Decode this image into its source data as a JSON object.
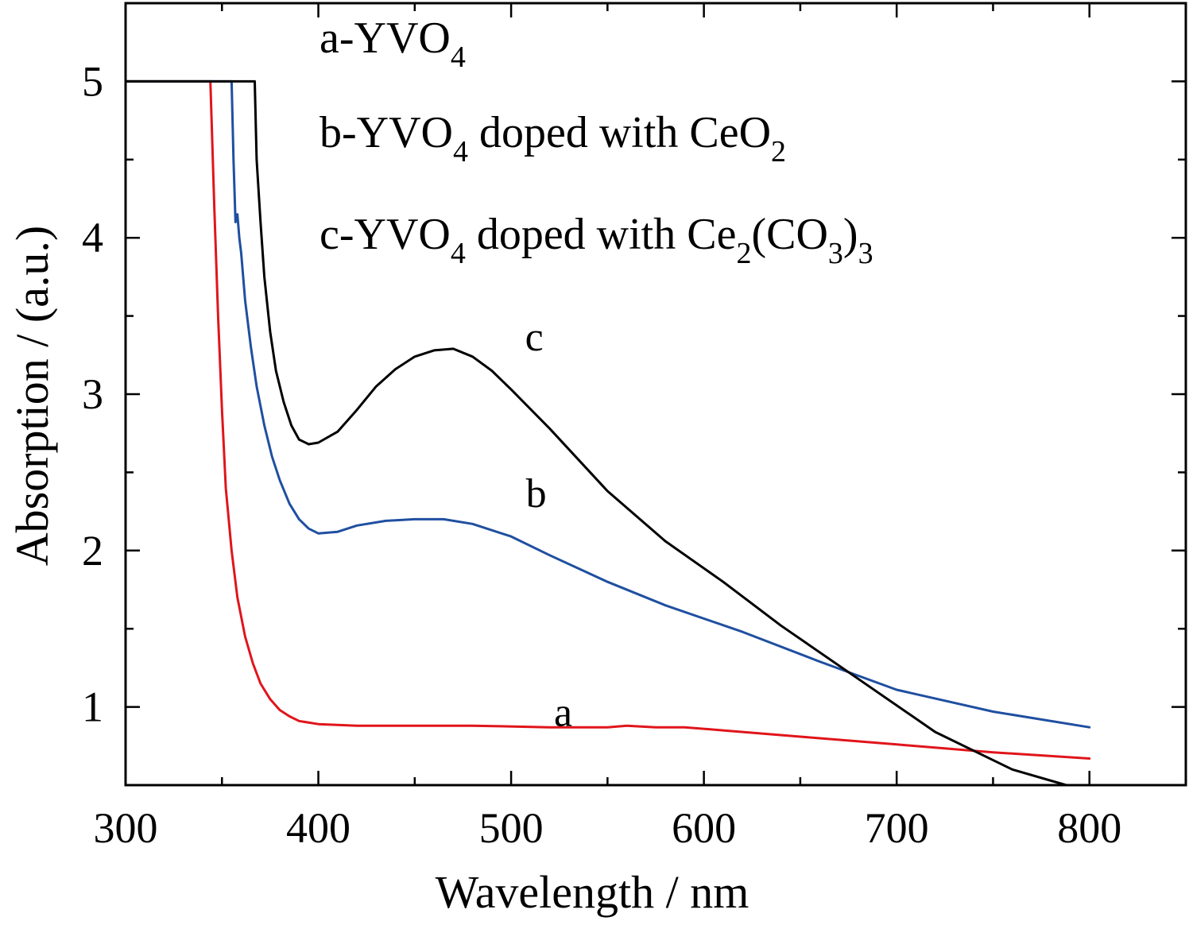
{
  "chart_data": {
    "type": "line",
    "xlabel": "Wavelength / nm",
    "ylabel": "Absorption / (a.u.)",
    "xlim": [
      300,
      850
    ],
    "ylim": [
      0.5,
      5.5
    ],
    "x_ticks": [
      300,
      400,
      500,
      600,
      700,
      800
    ],
    "y_ticks": [
      1,
      2,
      3,
      4,
      5
    ],
    "grid": false,
    "legend_position": "top",
    "legend": [
      {
        "text": "a-YVO",
        "sub": "4",
        "rest": ""
      },
      {
        "text": "b-YVO",
        "sub": "4",
        "rest": " doped with CeO",
        "sub2": "2"
      },
      {
        "text": "c-YVO",
        "sub": "4",
        "rest": " doped with Ce",
        "sub2": "2",
        "rest2": "(CO",
        "sub3": "3",
        "rest3": ")",
        "sub4": "3"
      }
    ],
    "series": [
      {
        "label": "a",
        "color": "#e0151b",
        "label_pos": [
          527,
          0.97
        ],
        "points": [
          [
            300,
            5
          ],
          [
            344,
            5
          ],
          [
            346,
            4.2
          ],
          [
            348,
            3.5
          ],
          [
            350,
            2.9
          ],
          [
            352,
            2.4
          ],
          [
            355,
            2.0
          ],
          [
            358,
            1.7
          ],
          [
            362,
            1.45
          ],
          [
            366,
            1.28
          ],
          [
            370,
            1.15
          ],
          [
            375,
            1.05
          ],
          [
            380,
            0.98
          ],
          [
            385,
            0.94
          ],
          [
            390,
            0.91
          ],
          [
            400,
            0.89
          ],
          [
            420,
            0.88
          ],
          [
            450,
            0.88
          ],
          [
            480,
            0.88
          ],
          [
            520,
            0.87
          ],
          [
            550,
            0.87
          ],
          [
            560,
            0.88
          ],
          [
            575,
            0.87
          ],
          [
            590,
            0.87
          ],
          [
            610,
            0.85
          ],
          [
            650,
            0.81
          ],
          [
            700,
            0.76
          ],
          [
            750,
            0.71
          ],
          [
            800,
            0.67
          ]
        ]
      },
      {
        "label": "b",
        "color": "#1f4fa0",
        "label_pos": [
          513,
          2.37
        ],
        "points": [
          [
            300,
            5
          ],
          [
            355,
            5
          ],
          [
            356,
            4.5
          ],
          [
            357,
            4.1
          ],
          [
            358,
            4.15
          ],
          [
            359,
            4.0
          ],
          [
            360,
            3.9
          ],
          [
            362,
            3.6
          ],
          [
            365,
            3.3
          ],
          [
            368,
            3.05
          ],
          [
            372,
            2.8
          ],
          [
            376,
            2.6
          ],
          [
            380,
            2.45
          ],
          [
            385,
            2.3
          ],
          [
            390,
            2.2
          ],
          [
            395,
            2.14
          ],
          [
            400,
            2.11
          ],
          [
            410,
            2.12
          ],
          [
            420,
            2.16
          ],
          [
            435,
            2.19
          ],
          [
            450,
            2.2
          ],
          [
            465,
            2.2
          ],
          [
            480,
            2.17
          ],
          [
            500,
            2.09
          ],
          [
            520,
            1.97
          ],
          [
            550,
            1.8
          ],
          [
            580,
            1.65
          ],
          [
            620,
            1.48
          ],
          [
            660,
            1.29
          ],
          [
            700,
            1.11
          ],
          [
            750,
            0.97
          ],
          [
            800,
            0.87
          ]
        ]
      },
      {
        "label": "c",
        "color": "#000000",
        "label_pos": [
          512,
          3.37
        ],
        "points": [
          [
            300,
            5
          ],
          [
            367,
            5
          ],
          [
            368,
            4.5
          ],
          [
            370,
            4.1
          ],
          [
            372,
            3.75
          ],
          [
            375,
            3.4
          ],
          [
            378,
            3.15
          ],
          [
            382,
            2.95
          ],
          [
            386,
            2.8
          ],
          [
            390,
            2.71
          ],
          [
            395,
            2.68
          ],
          [
            400,
            2.69
          ],
          [
            410,
            2.76
          ],
          [
            420,
            2.9
          ],
          [
            430,
            3.05
          ],
          [
            440,
            3.16
          ],
          [
            450,
            3.24
          ],
          [
            460,
            3.28
          ],
          [
            470,
            3.29
          ],
          [
            480,
            3.24
          ],
          [
            490,
            3.15
          ],
          [
            500,
            3.03
          ],
          [
            520,
            2.78
          ],
          [
            550,
            2.38
          ],
          [
            580,
            2.06
          ],
          [
            610,
            1.8
          ],
          [
            640,
            1.52
          ],
          [
            680,
            1.18
          ],
          [
            720,
            0.84
          ],
          [
            760,
            0.6
          ],
          [
            788,
            0.5
          ]
        ]
      }
    ]
  }
}
